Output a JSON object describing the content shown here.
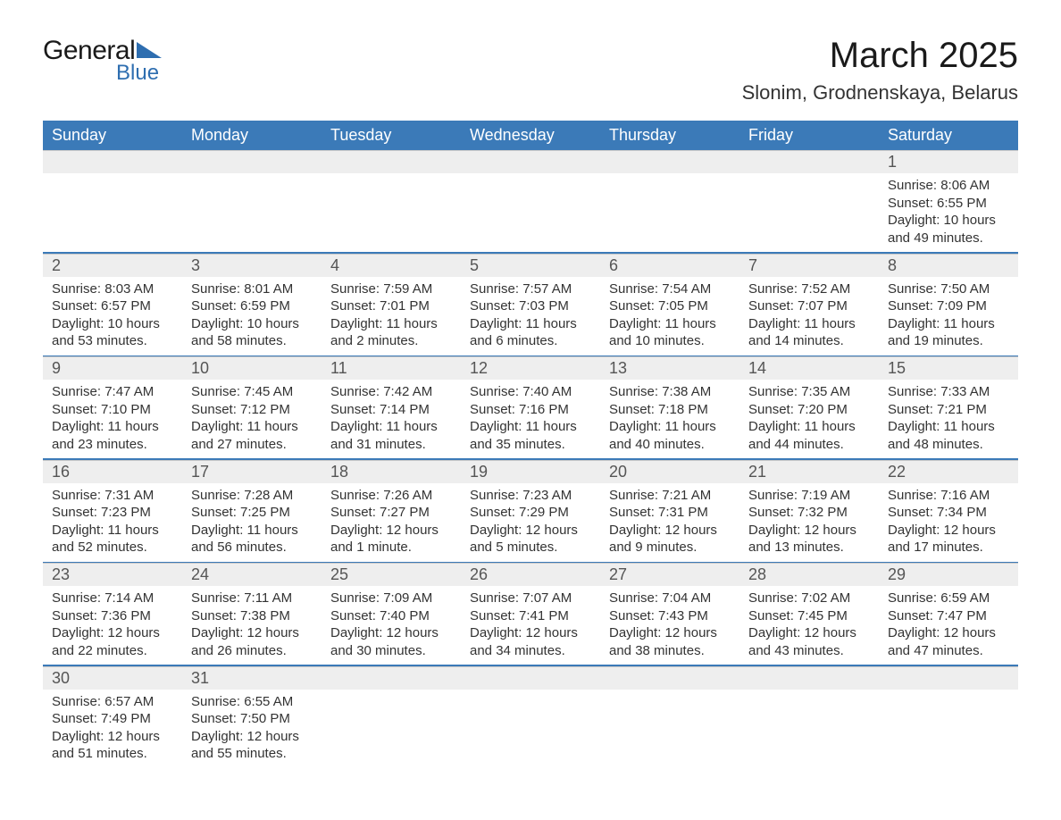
{
  "logo": {
    "text_general": "General",
    "text_blue": "Blue",
    "icon_fill": "#2e6eb0"
  },
  "title": "March 2025",
  "location": "Slonim, Grodnenskaya, Belarus",
  "colors": {
    "header_bg": "#3b7ab8",
    "header_text": "#ffffff",
    "daynum_bg": "#eeeeee",
    "daynum_text": "#555555",
    "body_text": "#333333",
    "separator": "#3b7ab8"
  },
  "day_headers": [
    "Sunday",
    "Monday",
    "Tuesday",
    "Wednesday",
    "Thursday",
    "Friday",
    "Saturday"
  ],
  "weeks": [
    {
      "days": [
        {
          "num": "",
          "lines": []
        },
        {
          "num": "",
          "lines": []
        },
        {
          "num": "",
          "lines": []
        },
        {
          "num": "",
          "lines": []
        },
        {
          "num": "",
          "lines": []
        },
        {
          "num": "",
          "lines": []
        },
        {
          "num": "1",
          "lines": [
            "Sunrise: 8:06 AM",
            "Sunset: 6:55 PM",
            "Daylight: 10 hours",
            "and 49 minutes."
          ]
        }
      ]
    },
    {
      "days": [
        {
          "num": "2",
          "lines": [
            "Sunrise: 8:03 AM",
            "Sunset: 6:57 PM",
            "Daylight: 10 hours",
            "and 53 minutes."
          ]
        },
        {
          "num": "3",
          "lines": [
            "Sunrise: 8:01 AM",
            "Sunset: 6:59 PM",
            "Daylight: 10 hours",
            "and 58 minutes."
          ]
        },
        {
          "num": "4",
          "lines": [
            "Sunrise: 7:59 AM",
            "Sunset: 7:01 PM",
            "Daylight: 11 hours",
            "and 2 minutes."
          ]
        },
        {
          "num": "5",
          "lines": [
            "Sunrise: 7:57 AM",
            "Sunset: 7:03 PM",
            "Daylight: 11 hours",
            "and 6 minutes."
          ]
        },
        {
          "num": "6",
          "lines": [
            "Sunrise: 7:54 AM",
            "Sunset: 7:05 PM",
            "Daylight: 11 hours",
            "and 10 minutes."
          ]
        },
        {
          "num": "7",
          "lines": [
            "Sunrise: 7:52 AM",
            "Sunset: 7:07 PM",
            "Daylight: 11 hours",
            "and 14 minutes."
          ]
        },
        {
          "num": "8",
          "lines": [
            "Sunrise: 7:50 AM",
            "Sunset: 7:09 PM",
            "Daylight: 11 hours",
            "and 19 minutes."
          ]
        }
      ]
    },
    {
      "days": [
        {
          "num": "9",
          "lines": [
            "Sunrise: 7:47 AM",
            "Sunset: 7:10 PM",
            "Daylight: 11 hours",
            "and 23 minutes."
          ]
        },
        {
          "num": "10",
          "lines": [
            "Sunrise: 7:45 AM",
            "Sunset: 7:12 PM",
            "Daylight: 11 hours",
            "and 27 minutes."
          ]
        },
        {
          "num": "11",
          "lines": [
            "Sunrise: 7:42 AM",
            "Sunset: 7:14 PM",
            "Daylight: 11 hours",
            "and 31 minutes."
          ]
        },
        {
          "num": "12",
          "lines": [
            "Sunrise: 7:40 AM",
            "Sunset: 7:16 PM",
            "Daylight: 11 hours",
            "and 35 minutes."
          ]
        },
        {
          "num": "13",
          "lines": [
            "Sunrise: 7:38 AM",
            "Sunset: 7:18 PM",
            "Daylight: 11 hours",
            "and 40 minutes."
          ]
        },
        {
          "num": "14",
          "lines": [
            "Sunrise: 7:35 AM",
            "Sunset: 7:20 PM",
            "Daylight: 11 hours",
            "and 44 minutes."
          ]
        },
        {
          "num": "15",
          "lines": [
            "Sunrise: 7:33 AM",
            "Sunset: 7:21 PM",
            "Daylight: 11 hours",
            "and 48 minutes."
          ]
        }
      ]
    },
    {
      "days": [
        {
          "num": "16",
          "lines": [
            "Sunrise: 7:31 AM",
            "Sunset: 7:23 PM",
            "Daylight: 11 hours",
            "and 52 minutes."
          ]
        },
        {
          "num": "17",
          "lines": [
            "Sunrise: 7:28 AM",
            "Sunset: 7:25 PM",
            "Daylight: 11 hours",
            "and 56 minutes."
          ]
        },
        {
          "num": "18",
          "lines": [
            "Sunrise: 7:26 AM",
            "Sunset: 7:27 PM",
            "Daylight: 12 hours",
            "and 1 minute."
          ]
        },
        {
          "num": "19",
          "lines": [
            "Sunrise: 7:23 AM",
            "Sunset: 7:29 PM",
            "Daylight: 12 hours",
            "and 5 minutes."
          ]
        },
        {
          "num": "20",
          "lines": [
            "Sunrise: 7:21 AM",
            "Sunset: 7:31 PM",
            "Daylight: 12 hours",
            "and 9 minutes."
          ]
        },
        {
          "num": "21",
          "lines": [
            "Sunrise: 7:19 AM",
            "Sunset: 7:32 PM",
            "Daylight: 12 hours",
            "and 13 minutes."
          ]
        },
        {
          "num": "22",
          "lines": [
            "Sunrise: 7:16 AM",
            "Sunset: 7:34 PM",
            "Daylight: 12 hours",
            "and 17 minutes."
          ]
        }
      ]
    },
    {
      "days": [
        {
          "num": "23",
          "lines": [
            "Sunrise: 7:14 AM",
            "Sunset: 7:36 PM",
            "Daylight: 12 hours",
            "and 22 minutes."
          ]
        },
        {
          "num": "24",
          "lines": [
            "Sunrise: 7:11 AM",
            "Sunset: 7:38 PM",
            "Daylight: 12 hours",
            "and 26 minutes."
          ]
        },
        {
          "num": "25",
          "lines": [
            "Sunrise: 7:09 AM",
            "Sunset: 7:40 PM",
            "Daylight: 12 hours",
            "and 30 minutes."
          ]
        },
        {
          "num": "26",
          "lines": [
            "Sunrise: 7:07 AM",
            "Sunset: 7:41 PM",
            "Daylight: 12 hours",
            "and 34 minutes."
          ]
        },
        {
          "num": "27",
          "lines": [
            "Sunrise: 7:04 AM",
            "Sunset: 7:43 PM",
            "Daylight: 12 hours",
            "and 38 minutes."
          ]
        },
        {
          "num": "28",
          "lines": [
            "Sunrise: 7:02 AM",
            "Sunset: 7:45 PM",
            "Daylight: 12 hours",
            "and 43 minutes."
          ]
        },
        {
          "num": "29",
          "lines": [
            "Sunrise: 6:59 AM",
            "Sunset: 7:47 PM",
            "Daylight: 12 hours",
            "and 47 minutes."
          ]
        }
      ]
    },
    {
      "days": [
        {
          "num": "30",
          "lines": [
            "Sunrise: 6:57 AM",
            "Sunset: 7:49 PM",
            "Daylight: 12 hours",
            "and 51 minutes."
          ]
        },
        {
          "num": "31",
          "lines": [
            "Sunrise: 6:55 AM",
            "Sunset: 7:50 PM",
            "Daylight: 12 hours",
            "and 55 minutes."
          ]
        },
        {
          "num": "",
          "lines": []
        },
        {
          "num": "",
          "lines": []
        },
        {
          "num": "",
          "lines": []
        },
        {
          "num": "",
          "lines": []
        },
        {
          "num": "",
          "lines": []
        }
      ]
    }
  ]
}
